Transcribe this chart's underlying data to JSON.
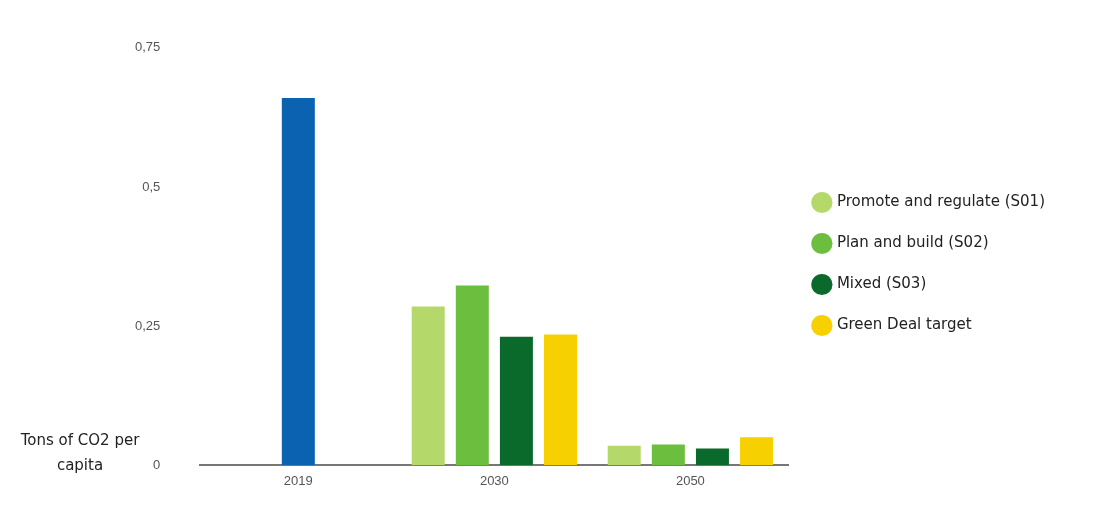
{
  "chart_data": {
    "type": "bar",
    "ylabel": "Tons of CO2 per capita",
    "categories": [
      "2019",
      "2030",
      "2050"
    ],
    "series": [
      {
        "color": "#0b62b0",
        "values": [
          0.66,
          null,
          null
        ]
      },
      {
        "name": "Promote and regulate (S01)",
        "color": "#b5d86a",
        "values": [
          null,
          0.285,
          0.035
        ]
      },
      {
        "name": "Plan and build (S02)",
        "color": "#6cbf3e",
        "values": [
          null,
          0.323,
          0.037
        ]
      },
      {
        "name": "Mixed (S03)",
        "color": "#0a6a2c",
        "values": [
          null,
          0.231,
          0.03
        ]
      },
      {
        "name": "Green Deal target",
        "color": "#f7d000",
        "values": [
          null,
          0.235,
          0.05
        ]
      }
    ],
    "ylim": [
      0,
      0.75
    ],
    "yticks": [
      0,
      {
        "value": 0.25,
        "label": "0,25"
      },
      {
        "value": 0.5,
        "label": "0,5"
      },
      {
        "value": 0.75,
        "label": "0,75"
      }
    ],
    "grid": false,
    "legend": "right"
  }
}
